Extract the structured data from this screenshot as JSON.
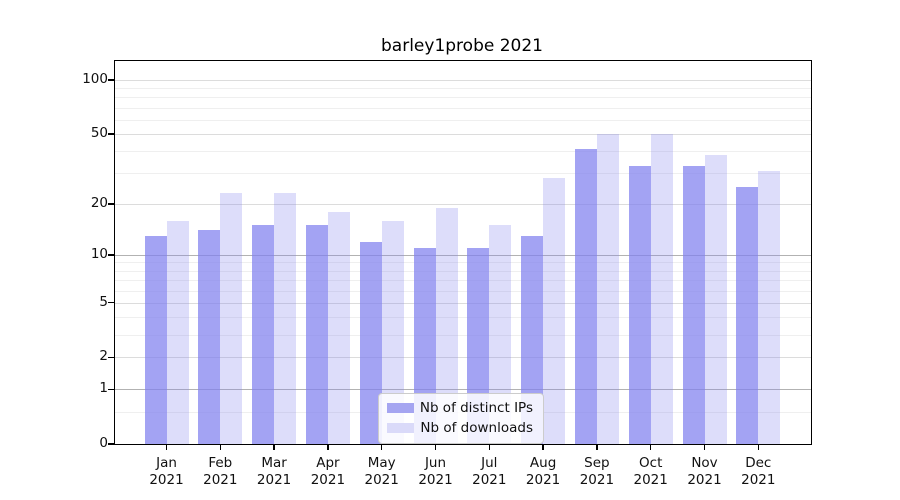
{
  "title": "barley1probe 2021",
  "chart_data": {
    "type": "bar",
    "title": "barley1probe 2021",
    "categories": [
      "Jan 2021",
      "Feb 2021",
      "Mar 2021",
      "Apr 2021",
      "May 2021",
      "Jun 2021",
      "Jul 2021",
      "Aug 2021",
      "Sep 2021",
      "Oct 2021",
      "Nov 2021",
      "Dec 2021"
    ],
    "series": [
      {
        "name": "Nb of distinct IPs",
        "color": "#a5a5f1",
        "values": [
          13,
          14,
          15,
          15,
          12,
          11,
          11,
          13,
          41,
          33,
          33,
          25
        ]
      },
      {
        "name": "Nb of downloads",
        "color": "#dadaf9",
        "values": [
          16,
          23,
          23,
          18,
          16,
          19,
          15,
          28,
          50,
          50,
          38,
          31
        ]
      }
    ],
    "xlabel": "",
    "ylabel": "",
    "yscale": "symlog",
    "yticks_major": [
      0,
      1,
      2,
      5,
      10,
      20,
      50,
      100
    ],
    "yticks_minor": [
      0.5,
      3,
      4,
      6,
      7,
      8,
      9,
      30,
      40,
      60,
      70,
      80,
      90
    ],
    "ylim": [
      0,
      128
    ],
    "grid": "on",
    "legend_position": "lower center",
    "colors": {
      "series0": "#a5a5f1",
      "series1": "#dadaf9",
      "grid_major": "#dcdcdc",
      "grid_decade": "#b2b2b2",
      "grid_minor": "#efefef",
      "spine": "#000000",
      "text": "#111111"
    }
  }
}
